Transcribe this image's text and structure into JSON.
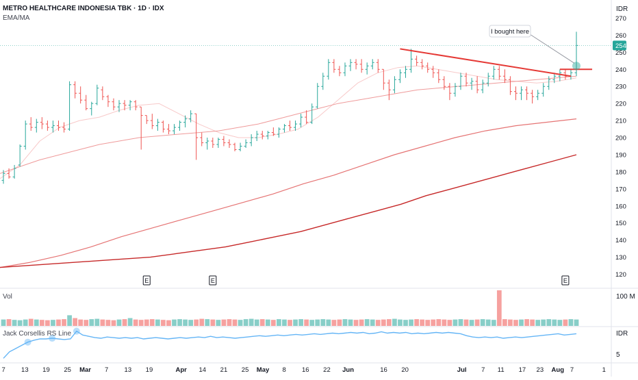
{
  "header": {
    "symbol_title": "METRO HEALTHCARE INDONESIA TBK · 1D · IDX",
    "indicator_label": "EMA/MA",
    "currency": "IDR"
  },
  "price_axis": {
    "ticks": [
      120,
      130,
      140,
      150,
      160,
      170,
      180,
      190,
      200,
      210,
      220,
      230,
      240,
      250,
      260
    ],
    "top_partial": "270",
    "current_price": "254"
  },
  "volume_panel": {
    "label": "Vol",
    "axis_label": "100 M"
  },
  "rs_panel": {
    "label": "Jack Corsellis RS Line",
    "axis_top": "IDR",
    "axis_bottom": "5"
  },
  "time_axis": {
    "labels": [
      "7",
      "13",
      "19",
      "25",
      "Mar",
      "7",
      "13",
      "19",
      "Apr",
      "14",
      "21",
      "25",
      "May",
      "8",
      "16",
      "22",
      "Jun",
      "16",
      "20",
      "Jul",
      "7",
      "11",
      "17",
      "23",
      "Aug",
      "7",
      "1"
    ]
  },
  "annotation": {
    "text": "I bought here"
  },
  "earnings_markers": [
    "E",
    "E",
    "E"
  ],
  "colors": {
    "up": "#26a69a",
    "down": "#ef5350",
    "trendline": "#e53935",
    "ema_dark": "#c62828",
    "ema_light": "#ef9a9a",
    "ma_faint": "#f8c9c9",
    "rs_line": "#64b5f6",
    "price_badge": "#26a69a"
  },
  "chart_data": [
    {
      "type": "ohlc",
      "title": "METRO HEALTHCARE INDONESIA TBK · 1D · IDX",
      "ylim": [
        113,
        275
      ],
      "series": [
        {
          "name": "Price",
          "values": [
            {
              "o": 175,
              "h": 181,
              "l": 173,
              "c": 179
            },
            {
              "o": 179,
              "h": 182,
              "l": 176,
              "c": 177
            },
            {
              "o": 177,
              "h": 184,
              "l": 176,
              "c": 182
            },
            {
              "o": 184,
              "h": 196,
              "l": 183,
              "c": 195
            },
            {
              "o": 195,
              "h": 210,
              "l": 193,
              "c": 208
            },
            {
              "o": 208,
              "h": 212,
              "l": 204,
              "c": 206
            },
            {
              "o": 206,
              "h": 211,
              "l": 203,
              "c": 209
            },
            {
              "o": 209,
              "h": 212,
              "l": 205,
              "c": 208
            },
            {
              "o": 208,
              "h": 210,
              "l": 204,
              "c": 206
            },
            {
              "o": 206,
              "h": 210,
              "l": 203,
              "c": 207
            },
            {
              "o": 207,
              "h": 210,
              "l": 204,
              "c": 206
            },
            {
              "o": 206,
              "h": 209,
              "l": 203,
              "c": 205
            },
            {
              "o": 205,
              "h": 233,
              "l": 204,
              "c": 231
            },
            {
              "o": 231,
              "h": 233,
              "l": 223,
              "c": 226
            },
            {
              "o": 226,
              "h": 230,
              "l": 220,
              "c": 222
            },
            {
              "o": 222,
              "h": 225,
              "l": 216,
              "c": 217
            },
            {
              "o": 217,
              "h": 221,
              "l": 213,
              "c": 220
            },
            {
              "o": 220,
              "h": 231,
              "l": 219,
              "c": 229
            },
            {
              "o": 228,
              "h": 230,
              "l": 222,
              "c": 224
            },
            {
              "o": 224,
              "h": 225,
              "l": 218,
              "c": 221
            },
            {
              "o": 221,
              "h": 223,
              "l": 216,
              "c": 218
            },
            {
              "o": 218,
              "h": 222,
              "l": 215,
              "c": 220
            },
            {
              "o": 220,
              "h": 222,
              "l": 216,
              "c": 219
            },
            {
              "o": 219,
              "h": 222,
              "l": 216,
              "c": 221
            },
            {
              "o": 221,
              "h": 222,
              "l": 216,
              "c": 218
            },
            {
              "o": 218,
              "h": 218,
              "l": 193,
              "c": 213
            },
            {
              "o": 213,
              "h": 213,
              "l": 208,
              "c": 210
            },
            {
              "o": 210,
              "h": 214,
              "l": 205,
              "c": 207
            },
            {
              "o": 207,
              "h": 211,
              "l": 204,
              "c": 209
            },
            {
              "o": 209,
              "h": 210,
              "l": 203,
              "c": 205
            },
            {
              "o": 205,
              "h": 208,
              "l": 202,
              "c": 204
            },
            {
              "o": 204,
              "h": 208,
              "l": 202,
              "c": 206
            },
            {
              "o": 206,
              "h": 210,
              "l": 204,
              "c": 209
            },
            {
              "o": 209,
              "h": 213,
              "l": 206,
              "c": 211
            },
            {
              "o": 211,
              "h": 216,
              "l": 209,
              "c": 214
            },
            {
              "o": 214,
              "h": 214,
              "l": 187,
              "c": 200
            },
            {
              "o": 200,
              "h": 203,
              "l": 195,
              "c": 197
            },
            {
              "o": 197,
              "h": 200,
              "l": 193,
              "c": 198
            },
            {
              "o": 198,
              "h": 200,
              "l": 194,
              "c": 196
            },
            {
              "o": 196,
              "h": 200,
              "l": 194,
              "c": 199
            },
            {
              "o": 199,
              "h": 201,
              "l": 195,
              "c": 197
            },
            {
              "o": 197,
              "h": 199,
              "l": 194,
              "c": 196
            },
            {
              "o": 196,
              "h": 197,
              "l": 192,
              "c": 193
            },
            {
              "o": 193,
              "h": 197,
              "l": 192,
              "c": 195
            },
            {
              "o": 195,
              "h": 199,
              "l": 194,
              "c": 197
            },
            {
              "o": 197,
              "h": 202,
              "l": 195,
              "c": 200
            },
            {
              "o": 200,
              "h": 204,
              "l": 198,
              "c": 202
            },
            {
              "o": 202,
              "h": 204,
              "l": 199,
              "c": 201
            },
            {
              "o": 201,
              "h": 204,
              "l": 199,
              "c": 203
            },
            {
              "o": 203,
              "h": 206,
              "l": 201,
              "c": 202
            },
            {
              "o": 202,
              "h": 206,
              "l": 200,
              "c": 205
            },
            {
              "o": 205,
              "h": 208,
              "l": 203,
              "c": 207
            },
            {
              "o": 207,
              "h": 210,
              "l": 204,
              "c": 206
            },
            {
              "o": 206,
              "h": 210,
              "l": 204,
              "c": 208
            },
            {
              "o": 208,
              "h": 214,
              "l": 206,
              "c": 212
            },
            {
              "o": 212,
              "h": 216,
              "l": 208,
              "c": 209
            },
            {
              "o": 209,
              "h": 220,
              "l": 208,
              "c": 218
            },
            {
              "o": 218,
              "h": 232,
              "l": 217,
              "c": 230
            },
            {
              "o": 230,
              "h": 238,
              "l": 228,
              "c": 236
            },
            {
              "o": 236,
              "h": 246,
              "l": 234,
              "c": 244
            },
            {
              "o": 244,
              "h": 246,
              "l": 238,
              "c": 240
            },
            {
              "o": 240,
              "h": 242,
              "l": 236,
              "c": 238
            },
            {
              "o": 238,
              "h": 244,
              "l": 236,
              "c": 242
            },
            {
              "o": 242,
              "h": 246,
              "l": 239,
              "c": 244
            },
            {
              "o": 244,
              "h": 246,
              "l": 240,
              "c": 243
            },
            {
              "o": 243,
              "h": 246,
              "l": 238,
              "c": 240
            },
            {
              "o": 240,
              "h": 244,
              "l": 237,
              "c": 242
            },
            {
              "o": 242,
              "h": 246,
              "l": 240,
              "c": 244
            },
            {
              "o": 244,
              "h": 246,
              "l": 238,
              "c": 240
            },
            {
              "o": 240,
              "h": 240,
              "l": 228,
              "c": 232
            },
            {
              "o": 232,
              "h": 234,
              "l": 222,
              "c": 228
            },
            {
              "o": 228,
              "h": 236,
              "l": 226,
              "c": 234
            },
            {
              "o": 234,
              "h": 240,
              "l": 232,
              "c": 238
            },
            {
              "o": 238,
              "h": 242,
              "l": 235,
              "c": 240
            },
            {
              "o": 240,
              "h": 252,
              "l": 238,
              "c": 246
            },
            {
              "o": 246,
              "h": 248,
              "l": 242,
              "c": 244
            },
            {
              "o": 244,
              "h": 246,
              "l": 240,
              "c": 242
            },
            {
              "o": 242,
              "h": 244,
              "l": 238,
              "c": 240
            },
            {
              "o": 240,
              "h": 242,
              "l": 235,
              "c": 238
            },
            {
              "o": 238,
              "h": 240,
              "l": 232,
              "c": 234
            },
            {
              "o": 234,
              "h": 236,
              "l": 228,
              "c": 230
            },
            {
              "o": 230,
              "h": 232,
              "l": 222,
              "c": 226
            },
            {
              "o": 226,
              "h": 232,
              "l": 224,
              "c": 230
            },
            {
              "o": 230,
              "h": 238,
              "l": 228,
              "c": 236
            },
            {
              "o": 236,
              "h": 238,
              "l": 230,
              "c": 232
            },
            {
              "o": 232,
              "h": 235,
              "l": 228,
              "c": 233
            },
            {
              "o": 233,
              "h": 236,
              "l": 226,
              "c": 228
            },
            {
              "o": 228,
              "h": 234,
              "l": 226,
              "c": 232
            },
            {
              "o": 232,
              "h": 238,
              "l": 230,
              "c": 236
            },
            {
              "o": 236,
              "h": 242,
              "l": 234,
              "c": 240
            },
            {
              "o": 240,
              "h": 242,
              "l": 234,
              "c": 236
            },
            {
              "o": 236,
              "h": 240,
              "l": 232,
              "c": 234
            },
            {
              "o": 234,
              "h": 236,
              "l": 225,
              "c": 227
            },
            {
              "o": 227,
              "h": 230,
              "l": 222,
              "c": 226
            },
            {
              "o": 226,
              "h": 230,
              "l": 222,
              "c": 228
            },
            {
              "o": 228,
              "h": 230,
              "l": 222,
              "c": 226
            },
            {
              "o": 226,
              "h": 228,
              "l": 220,
              "c": 224
            },
            {
              "o": 224,
              "h": 228,
              "l": 222,
              "c": 226
            },
            {
              "o": 226,
              "h": 232,
              "l": 224,
              "c": 230
            },
            {
              "o": 230,
              "h": 236,
              "l": 228,
              "c": 234
            },
            {
              "o": 234,
              "h": 238,
              "l": 232,
              "c": 236
            },
            {
              "o": 236,
              "h": 240,
              "l": 233,
              "c": 238
            },
            {
              "o": 238,
              "h": 240,
              "l": 234,
              "c": 236
            },
            {
              "o": 236,
              "h": 240,
              "l": 234,
              "c": 238
            },
            {
              "o": 238,
              "h": 262,
              "l": 236,
              "c": 254
            }
          ]
        },
        {
          "name": "EMA",
          "values": [
            124,
            127,
            131,
            136,
            142,
            147,
            152,
            157,
            162,
            167,
            173,
            178,
            184,
            190,
            195,
            200,
            204,
            207,
            209,
            211
          ]
        },
        {
          "name": "EMA",
          "values": [
            124,
            125,
            126,
            127,
            128,
            129,
            130,
            132,
            134,
            136,
            139,
            142,
            145,
            149,
            153,
            157,
            161,
            166,
            170,
            174,
            178,
            182,
            186,
            190
          ]
        },
        {
          "name": "EMA/MA",
          "values": [
            179,
            183,
            187,
            190,
            193,
            196,
            198,
            200,
            201,
            202,
            203,
            204,
            206,
            208,
            211,
            214,
            217,
            220,
            222,
            224,
            226,
            228,
            229,
            230,
            231,
            232,
            233,
            234,
            235,
            236
          ]
        },
        {
          "name": "MA",
          "values": [
            176,
            184,
            198,
            206,
            210,
            212,
            216,
            219,
            220,
            214,
            208,
            203,
            200,
            200,
            202,
            205,
            212,
            222,
            232,
            238,
            241,
            242,
            240,
            238,
            236,
            234,
            233,
            232,
            233,
            235
          ]
        }
      ]
    },
    {
      "type": "bar",
      "title": "Vol",
      "values": [
        18,
        19,
        17,
        16,
        18,
        20,
        18,
        17,
        16,
        17,
        18,
        19,
        30,
        22,
        18,
        17,
        19,
        20,
        18,
        17,
        16,
        18,
        19,
        22,
        18,
        17,
        18,
        19,
        18,
        17,
        16,
        18,
        19,
        18,
        17,
        18,
        20,
        19,
        18,
        17,
        18,
        19,
        18,
        17,
        19,
        20,
        18,
        19,
        18,
        17,
        19,
        18,
        17,
        18,
        19,
        18,
        17,
        18,
        19,
        18,
        17,
        18,
        19,
        18,
        17,
        18,
        19,
        18,
        17,
        18,
        19,
        20,
        18,
        17,
        18,
        19,
        18,
        17,
        18,
        19,
        18,
        17,
        18,
        19,
        18,
        17,
        18,
        19,
        18,
        17,
        100,
        19,
        18,
        17,
        18,
        19,
        18,
        17,
        18,
        19,
        18,
        17,
        18,
        19,
        18
      ],
      "ylim": [
        0,
        100
      ]
    },
    {
      "type": "line",
      "title": "Jack Corsellis RS Line",
      "series": [
        {
          "name": "Jack Corsellis RS Line",
          "values": [
            4,
            5,
            5.5,
            6,
            6.5,
            6.8,
            7,
            7,
            7.1,
            7,
            6.9,
            7,
            8.2,
            7.6,
            7.4,
            7.2,
            7.1,
            7.3,
            7.2,
            7.1,
            7.2,
            7.1,
            7.2,
            7,
            7.1,
            7.2,
            7.1,
            7,
            7.1,
            7.2,
            7.1,
            7.2,
            7.3,
            7.2,
            7.4,
            7.2,
            7.3,
            7.2,
            7.1,
            7.2,
            7.3,
            7.4,
            7.5,
            7.4,
            7.5,
            7.6,
            7.5,
            7.6,
            7.7,
            7.6,
            7.7,
            7.8,
            7.7,
            7.8,
            7.9,
            7.8,
            7.9,
            8,
            7.9,
            8,
            7.8,
            7.9,
            8.1,
            7.9,
            8,
            7.9,
            8,
            7.8,
            7.9,
            7.8,
            7.9,
            8,
            7.9,
            8,
            7.9,
            7.8,
            7.5,
            7.3,
            7.2,
            7.3,
            7.2,
            7.3,
            7.1,
            7.2,
            7.3,
            7.2,
            7.3,
            7.4,
            7.5,
            7.6,
            7.7,
            7.8,
            7.6,
            7.7,
            7.8
          ]
        }
      ]
    }
  ]
}
